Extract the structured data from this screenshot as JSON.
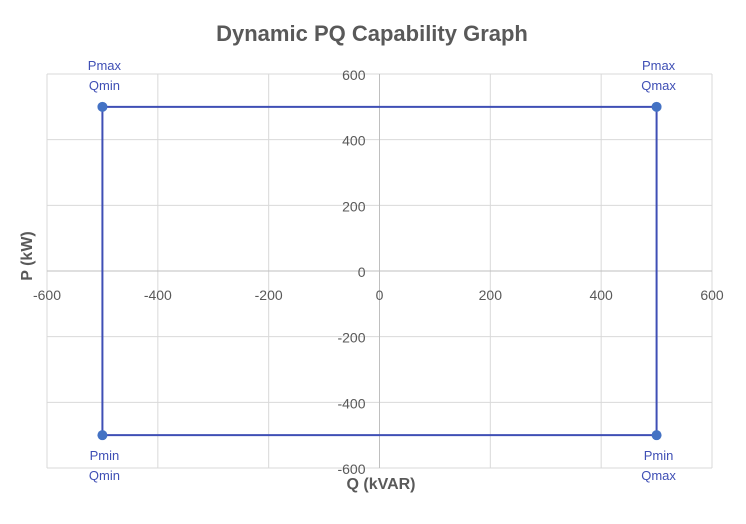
{
  "chart_data": {
    "type": "scatter",
    "title": "Dynamic PQ Capability Graph",
    "xlabel": "Q (kVAR)",
    "ylabel": "P (kW)",
    "xlim": [
      -600,
      600
    ],
    "ylim": [
      -600,
      600
    ],
    "x_ticks": [
      -600,
      -400,
      -200,
      0,
      200,
      400,
      600
    ],
    "y_ticks": [
      -600,
      -400,
      -200,
      0,
      200,
      400,
      600
    ],
    "grid": true,
    "series": [
      {
        "points": [
          {
            "x": -500,
            "y": 500,
            "label": [
              "Pmax",
              "Qmin"
            ]
          },
          {
            "x": 500,
            "y": 500,
            "label": [
              "Pmax",
              "Qmax"
            ]
          },
          {
            "x": 500,
            "y": -500,
            "label": [
              "Pmin",
              "Qmax"
            ]
          },
          {
            "x": -500,
            "y": -500,
            "label": [
              "Pmin",
              "Qmin"
            ]
          }
        ],
        "closed": true,
        "marker_color": "#4472C4",
        "line_color": "#3F4FB5",
        "label_color": "#3F4FB5"
      }
    ]
  },
  "colors": {
    "grid": "#D9D9D9",
    "axis": "#BFBFBF",
    "text": "#595959"
  }
}
